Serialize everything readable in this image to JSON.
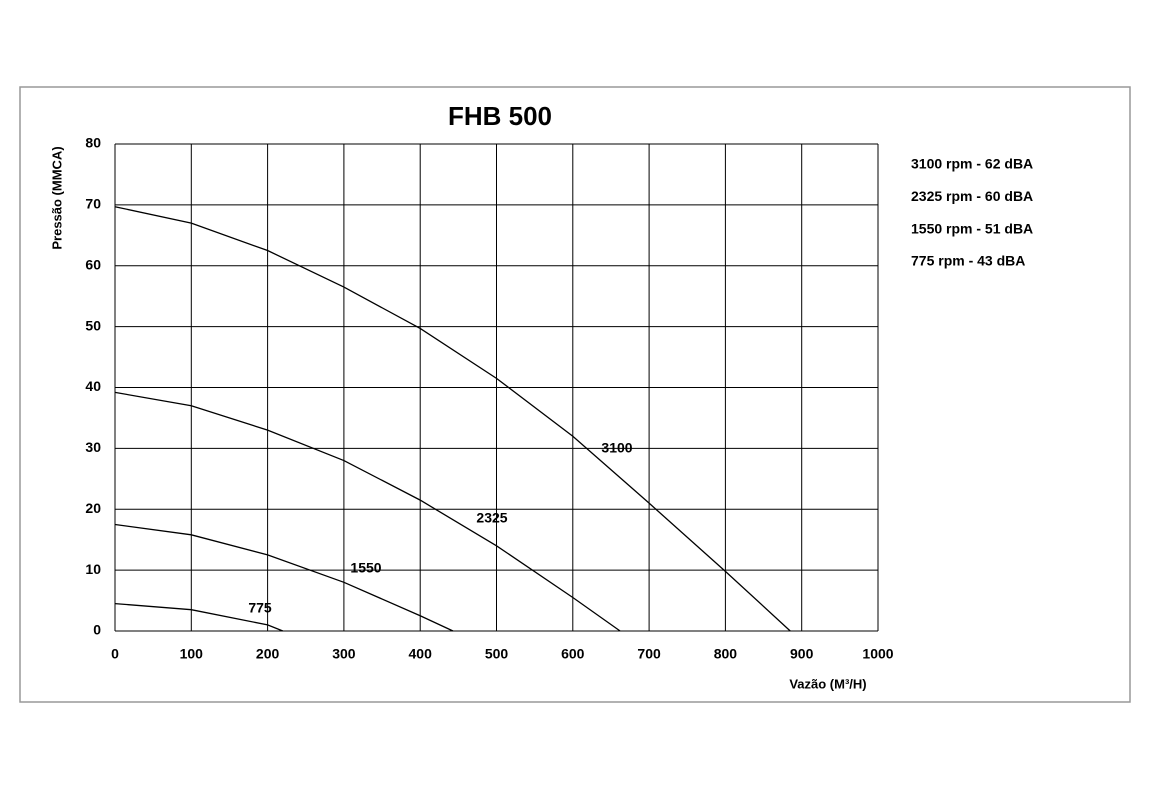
{
  "chart_data": {
    "type": "line",
    "title": "FHB 500",
    "x_label": "Vazão (M³/H)",
    "y_label": "Pressão (MMCA)",
    "xlim": [
      0,
      1000
    ],
    "xticks": [
      0,
      100,
      200,
      300,
      400,
      500,
      600,
      700,
      800,
      900,
      1000
    ],
    "ylim": [
      0,
      80
    ],
    "yticks": [
      0,
      10,
      20,
      30,
      40,
      50,
      60,
      70,
      80
    ],
    "grid": true,
    "legend": "right",
    "series": [
      {
        "name": "3100 rpm - 62 dBA",
        "label": "3100",
        "color": "#000000",
        "x": [
          0,
          100,
          200,
          300,
          400,
          500,
          600,
          700,
          800,
          885
        ],
        "values": [
          69.7,
          67,
          62.5,
          56.5,
          49.7,
          41.5,
          32,
          21,
          9.8,
          0
        ]
      },
      {
        "name": "2325 rpm - 60 dBA",
        "label": "2325",
        "color": "#000000",
        "x": [
          0,
          100,
          200,
          300,
          400,
          500,
          600,
          662
        ],
        "values": [
          39.2,
          37,
          33,
          28,
          21.5,
          14,
          5.5,
          0
        ]
      },
      {
        "name": "1550 rpm - 51 dBA",
        "label": "1550",
        "color": "#000000",
        "x": [
          0,
          100,
          200,
          300,
          400,
          443
        ],
        "values": [
          17.5,
          15.8,
          12.5,
          8,
          2.5,
          0
        ]
      },
      {
        "name": "775 rpm - 43 dBA",
        "label": "775",
        "color": "#000000",
        "x": [
          0,
          100,
          200,
          220
        ],
        "values": [
          4.5,
          3.5,
          1,
          0
        ]
      }
    ]
  }
}
